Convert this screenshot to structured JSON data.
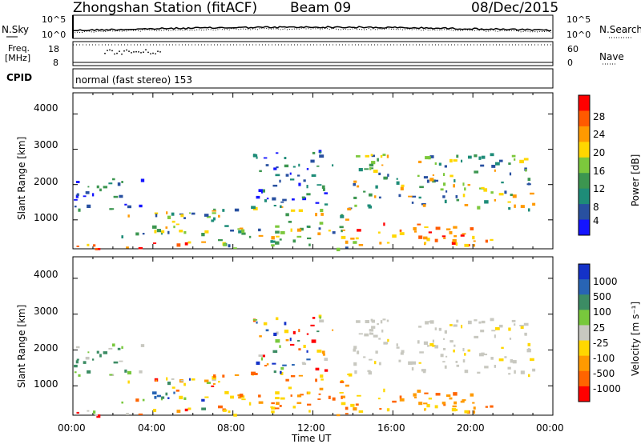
{
  "header": {
    "station": "Zhongshan Station (fitACF)",
    "beam": "Beam 09",
    "date": "08/Dec/2015"
  },
  "noise_panel": {
    "left_label": "N.Sky",
    "right_label": "N.Search",
    "ticks": [
      "10^5",
      "10^0"
    ]
  },
  "freq_panel": {
    "left_label_top": "Freq.",
    "left_label_unit": "[MHz]",
    "left_ticks": [
      "18",
      "8"
    ],
    "right_label": "Nave",
    "right_ticks": [
      "60",
      "0"
    ]
  },
  "cpid_panel": {
    "label": "CPID",
    "text": "normal (fast stereo) 153"
  },
  "power_panel": {
    "ylabel": "Slant Range [km]",
    "yticks": [
      "4000",
      "3000",
      "2000",
      "1000"
    ],
    "colorbar_label": "Power [dB]",
    "colorbar_ticks": [
      "28",
      "24",
      "20",
      "16",
      "12",
      "8",
      "4"
    ],
    "colorbar_colors": [
      "#ff0000",
      "#ff5a00",
      "#ff9a00",
      "#ffd700",
      "#7cc83c",
      "#3c9650",
      "#1e8c78",
      "#2850a0",
      "#1414ff"
    ]
  },
  "velocity_panel": {
    "ylabel": "Slant Range [km]",
    "yticks": [
      "4000",
      "3000",
      "2000",
      "1000"
    ],
    "colorbar_label": "Velocity [m s⁻¹]",
    "colorbar_ticks": [
      "1000",
      "500",
      "100",
      "25",
      "-25",
      "-100",
      "-500",
      "-1000"
    ],
    "colorbar_colors": [
      "#1432c8",
      "#2864b4",
      "#3c8c64",
      "#78c83c",
      "#c8c8c0",
      "#ffd700",
      "#ff9a00",
      "#ff6400",
      "#ff0000"
    ]
  },
  "time_axis": {
    "label": "Time UT",
    "ticks": [
      "00:00",
      "04:00",
      "08:00",
      "12:00",
      "16:00",
      "20:00",
      "00:00"
    ]
  },
  "chart_data": {
    "type": "heatmap",
    "x_range_hours_ut": [
      0,
      24
    ],
    "y_range_km": [
      180,
      4600
    ],
    "blobs": [
      {
        "t0": 0.0,
        "t1": 7.0,
        "r0": 200,
        "r1": 400,
        "panel": "both",
        "power": "high",
        "velocity": "mixed"
      },
      {
        "t0": 2.0,
        "t1": 7.0,
        "r0": 500,
        "r1": 1300,
        "panel": "both",
        "power": "mid",
        "velocity": "mixed"
      },
      {
        "t0": 0.0,
        "t1": 3.5,
        "r0": 1300,
        "r1": 2200,
        "panel": "both",
        "power": "low",
        "velocity": "low-positive"
      },
      {
        "t0": 7.0,
        "t1": 14.0,
        "r0": 200,
        "r1": 1400,
        "panel": "both",
        "power": "mid",
        "velocity": "negative"
      },
      {
        "t0": 9.0,
        "t1": 13.0,
        "r0": 1400,
        "r1": 3000,
        "panel": "both",
        "power": "low",
        "velocity": "mixed"
      },
      {
        "t0": 14.0,
        "t1": 21.0,
        "r0": 300,
        "r1": 1000,
        "panel": "both",
        "power": "high",
        "velocity": "negative"
      },
      {
        "t0": 14.0,
        "t1": 23.0,
        "r0": 1300,
        "r1": 2900,
        "panel": "both",
        "power": "mid",
        "velocity": "near-zero"
      }
    ]
  }
}
